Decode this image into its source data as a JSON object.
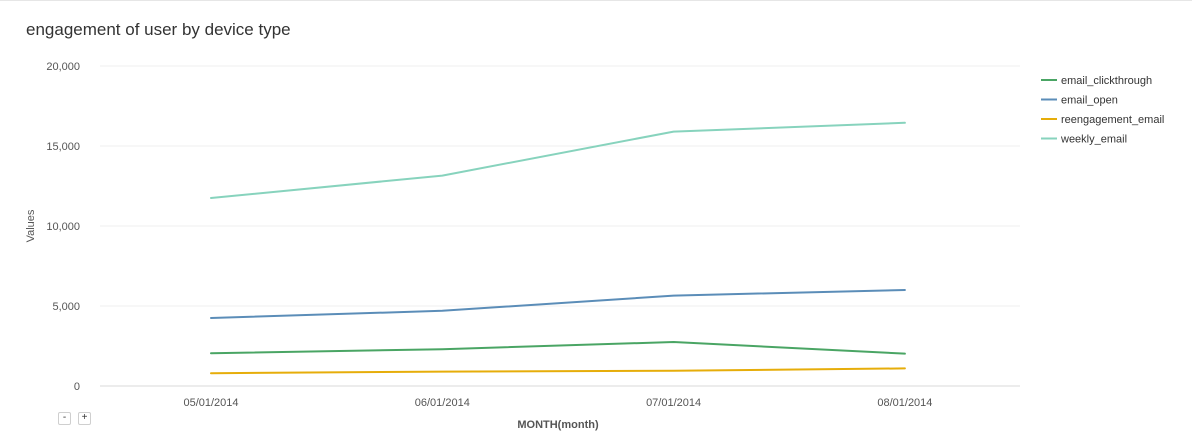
{
  "chart_data": {
    "type": "line",
    "title": "engagement of user by device type",
    "xlabel": "MONTH(month)",
    "ylabel": "Values",
    "categories": [
      "05/01/2014",
      "06/01/2014",
      "07/01/2014",
      "08/01/2014"
    ],
    "ylim": [
      0,
      20000
    ],
    "yticks": [
      0,
      5000,
      10000,
      15000,
      20000
    ],
    "ytick_labels": [
      "0",
      "5,000",
      "10,000",
      "15,000",
      "20,000"
    ],
    "grid": true,
    "legend_position": "top-right",
    "series": [
      {
        "name": "email_clickthrough",
        "color": "#4aa564",
        "values": [
          2050,
          2300,
          2750,
          2020
        ]
      },
      {
        "name": "email_open",
        "color": "#5b8db8",
        "values": [
          4250,
          4700,
          5650,
          6000
        ]
      },
      {
        "name": "reengagement_email",
        "color": "#e6ad0a",
        "values": [
          800,
          900,
          950,
          1100
        ]
      },
      {
        "name": "weekly_email",
        "color": "#87d3bd",
        "values": [
          11750,
          13150,
          15900,
          16450
        ]
      }
    ]
  },
  "zoom": {
    "out_label": "-",
    "in_label": "+"
  }
}
